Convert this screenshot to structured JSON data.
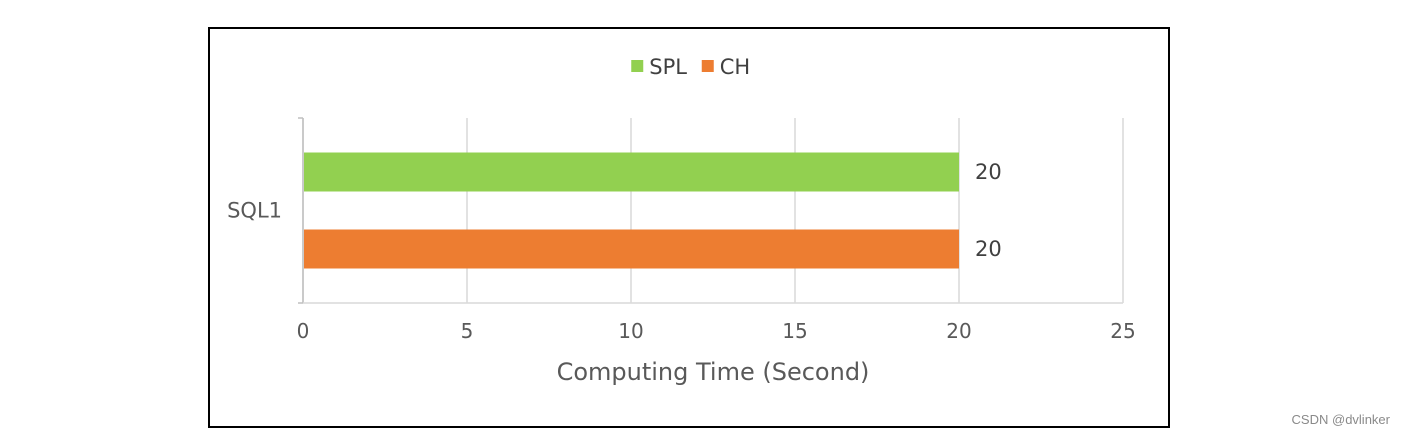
{
  "chart_data": {
    "type": "bar",
    "orientation": "horizontal",
    "categories": [
      "SQL1"
    ],
    "series": [
      {
        "name": "SPL",
        "values": [
          20
        ],
        "color": "#92D050"
      },
      {
        "name": "CH",
        "values": [
          20
        ],
        "color": "#ED7D31"
      }
    ],
    "xlabel": "Computing Time (Second)",
    "ylabel": "",
    "xlim": [
      0,
      25
    ],
    "xticks": [
      0,
      5,
      10,
      15,
      20,
      25
    ],
    "grid": true,
    "legend": "top-center",
    "data_labels": true
  },
  "watermark": "CSDN @dvlinker"
}
